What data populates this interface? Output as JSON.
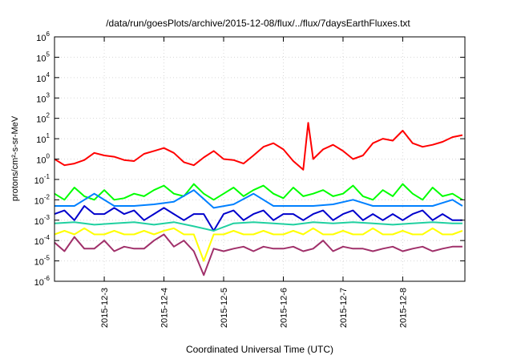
{
  "chart_data": {
    "type": "line",
    "title": "/data/run/goesPlots/archive/2015-12-08/flux/../flux/7daysEarthFluxes.txt",
    "xlabel": "Coordinated Universal Time (UTC)",
    "ylabel": "protons/cm²-s-sr-MeV",
    "yscale": "log",
    "ylim": [
      1e-06,
      1000000.0
    ],
    "xlim": [
      "2015-12-02T04:00",
      "2015-12-09T01:00"
    ],
    "grid": true,
    "y_ticks": [
      {
        "base": "10",
        "exp": "-6"
      },
      {
        "base": "10",
        "exp": "-5"
      },
      {
        "base": "10",
        "exp": "-4"
      },
      {
        "base": "10",
        "exp": "-3"
      },
      {
        "base": "10",
        "exp": "-2"
      },
      {
        "base": "10",
        "exp": "-1"
      },
      {
        "base": "10",
        "exp": "0"
      },
      {
        "base": "10",
        "exp": "1"
      },
      {
        "base": "10",
        "exp": "2"
      },
      {
        "base": "10",
        "exp": "3"
      },
      {
        "base": "10",
        "exp": "4"
      },
      {
        "base": "10",
        "exp": "5"
      },
      {
        "base": "10",
        "exp": "6"
      }
    ],
    "x_ticks": [
      "2015-12-3",
      "2015-12-4",
      "2015-12-5",
      "2015-12-6",
      "2015-12-7",
      "2015-12-8"
    ],
    "x_tick_dates": [
      "2015-12-03T00:00",
      "2015-12-04T00:00",
      "2015-12-05T00:00",
      "2015-12-06T00:00",
      "2015-12-07T00:00",
      "2015-12-08T00:00"
    ],
    "series": [
      {
        "color": "#ff0000",
        "x": [
          "2015-12-02T04:00",
          "2015-12-02T08:00",
          "2015-12-02T12:00",
          "2015-12-02T16:00",
          "2015-12-02T20:00",
          "2015-12-03T00:00",
          "2015-12-03T04:00",
          "2015-12-03T08:00",
          "2015-12-03T12:00",
          "2015-12-03T16:00",
          "2015-12-03T20:00",
          "2015-12-04T00:00",
          "2015-12-04T04:00",
          "2015-12-04T08:00",
          "2015-12-04T12:00",
          "2015-12-04T16:00",
          "2015-12-04T20:00",
          "2015-12-05T00:00",
          "2015-12-05T04:00",
          "2015-12-05T08:00",
          "2015-12-05T12:00",
          "2015-12-05T16:00",
          "2015-12-05T20:00",
          "2015-12-06T00:00",
          "2015-12-06T04:00",
          "2015-12-06T08:00",
          "2015-12-06T10:00",
          "2015-12-06T12:00",
          "2015-12-06T16:00",
          "2015-12-06T20:00",
          "2015-12-07T00:00",
          "2015-12-07T04:00",
          "2015-12-07T08:00",
          "2015-12-07T12:00",
          "2015-12-07T16:00",
          "2015-12-07T20:00",
          "2015-12-08T00:00",
          "2015-12-08T04:00",
          "2015-12-08T08:00",
          "2015-12-08T12:00",
          "2015-12-08T16:00",
          "2015-12-08T20:00",
          "2015-12-09T00:00"
        ],
        "y": [
          1.0,
          0.5,
          0.6,
          0.9,
          2.0,
          1.5,
          1.3,
          0.9,
          0.8,
          1.8,
          2.5,
          3.5,
          2.0,
          0.7,
          0.5,
          1.2,
          2.5,
          1.0,
          0.9,
          0.6,
          1.5,
          4.0,
          6.0,
          3.0,
          0.8,
          0.3,
          60,
          1.0,
          3.0,
          5.0,
          2.5,
          1.0,
          1.5,
          6.0,
          10,
          8.0,
          25,
          6.0,
          4.0,
          5.0,
          7.0,
          12,
          15
        ]
      },
      {
        "color": "#00ff00",
        "x": [
          "2015-12-02T04:00",
          "2015-12-02T08:00",
          "2015-12-02T12:00",
          "2015-12-02T16:00",
          "2015-12-02T20:00",
          "2015-12-03T00:00",
          "2015-12-03T04:00",
          "2015-12-03T08:00",
          "2015-12-03T12:00",
          "2015-12-03T16:00",
          "2015-12-03T20:00",
          "2015-12-04T00:00",
          "2015-12-04T04:00",
          "2015-12-04T08:00",
          "2015-12-04T12:00",
          "2015-12-04T16:00",
          "2015-12-04T20:00",
          "2015-12-05T00:00",
          "2015-12-05T04:00",
          "2015-12-05T08:00",
          "2015-12-05T12:00",
          "2015-12-05T16:00",
          "2015-12-05T20:00",
          "2015-12-06T00:00",
          "2015-12-06T04:00",
          "2015-12-06T08:00",
          "2015-12-06T12:00",
          "2015-12-06T16:00",
          "2015-12-06T20:00",
          "2015-12-07T00:00",
          "2015-12-07T04:00",
          "2015-12-07T08:00",
          "2015-12-07T12:00",
          "2015-12-07T16:00",
          "2015-12-07T20:00",
          "2015-12-08T00:00",
          "2015-12-08T04:00",
          "2015-12-08T08:00",
          "2015-12-08T12:00",
          "2015-12-08T16:00",
          "2015-12-08T20:00",
          "2015-12-09T00:00"
        ],
        "y": [
          0.02,
          0.01,
          0.04,
          0.015,
          0.01,
          0.03,
          0.01,
          0.012,
          0.02,
          0.015,
          0.03,
          0.05,
          0.02,
          0.015,
          0.06,
          0.02,
          0.01,
          0.02,
          0.04,
          0.015,
          0.03,
          0.05,
          0.02,
          0.012,
          0.04,
          0.015,
          0.02,
          0.03,
          0.015,
          0.02,
          0.05,
          0.015,
          0.01,
          0.03,
          0.015,
          0.06,
          0.02,
          0.01,
          0.04,
          0.015,
          0.02,
          0.01
        ]
      },
      {
        "color": "#0080ff",
        "x": [
          "2015-12-02T04:00",
          "2015-12-02T12:00",
          "2015-12-02T20:00",
          "2015-12-03T04:00",
          "2015-12-03T12:00",
          "2015-12-03T20:00",
          "2015-12-04T04:00",
          "2015-12-04T12:00",
          "2015-12-04T20:00",
          "2015-12-05T04:00",
          "2015-12-05T12:00",
          "2015-12-05T20:00",
          "2015-12-06T04:00",
          "2015-12-06T12:00",
          "2015-12-06T20:00",
          "2015-12-07T04:00",
          "2015-12-07T12:00",
          "2015-12-07T20:00",
          "2015-12-08T04:00",
          "2015-12-08T12:00",
          "2015-12-08T20:00",
          "2015-12-09T00:00"
        ],
        "y": [
          0.005,
          0.005,
          0.02,
          0.005,
          0.005,
          0.006,
          0.008,
          0.03,
          0.004,
          0.006,
          0.02,
          0.005,
          0.005,
          0.005,
          0.006,
          0.01,
          0.005,
          0.005,
          0.005,
          0.005,
          0.01,
          0.005
        ]
      },
      {
        "color": "#0000cc",
        "x": [
          "2015-12-02T04:00",
          "2015-12-02T08:00",
          "2015-12-02T12:00",
          "2015-12-02T16:00",
          "2015-12-02T20:00",
          "2015-12-03T00:00",
          "2015-12-03T04:00",
          "2015-12-03T08:00",
          "2015-12-03T12:00",
          "2015-12-03T16:00",
          "2015-12-03T20:00",
          "2015-12-04T00:00",
          "2015-12-04T04:00",
          "2015-12-04T08:00",
          "2015-12-04T12:00",
          "2015-12-04T16:00",
          "2015-12-04T20:00",
          "2015-12-05T00:00",
          "2015-12-05T04:00",
          "2015-12-05T08:00",
          "2015-12-05T12:00",
          "2015-12-05T16:00",
          "2015-12-05T20:00",
          "2015-12-06T00:00",
          "2015-12-06T04:00",
          "2015-12-06T08:00",
          "2015-12-06T12:00",
          "2015-12-06T16:00",
          "2015-12-06T20:00",
          "2015-12-07T00:00",
          "2015-12-07T04:00",
          "2015-12-07T08:00",
          "2015-12-07T12:00",
          "2015-12-07T16:00",
          "2015-12-07T20:00",
          "2015-12-08T00:00",
          "2015-12-08T04:00",
          "2015-12-08T08:00",
          "2015-12-08T12:00",
          "2015-12-08T16:00",
          "2015-12-08T20:00",
          "2015-12-09T00:00"
        ],
        "y": [
          0.002,
          0.003,
          0.001,
          0.005,
          0.002,
          0.002,
          0.004,
          0.002,
          0.003,
          0.001,
          0.002,
          0.004,
          0.002,
          0.001,
          0.002,
          0.002,
          0.0003,
          0.002,
          0.003,
          0.001,
          0.002,
          0.003,
          0.001,
          0.002,
          0.002,
          0.001,
          0.002,
          0.003,
          0.001,
          0.002,
          0.003,
          0.001,
          0.002,
          0.001,
          0.002,
          0.001,
          0.002,
          0.003,
          0.001,
          0.002,
          0.001,
          0.001
        ]
      },
      {
        "color": "#20d0a0",
        "x": [
          "2015-12-02T04:00",
          "2015-12-02T12:00",
          "2015-12-02T20:00",
          "2015-12-03T04:00",
          "2015-12-03T12:00",
          "2015-12-03T20:00",
          "2015-12-04T04:00",
          "2015-12-04T12:00",
          "2015-12-04T20:00",
          "2015-12-05T04:00",
          "2015-12-05T12:00",
          "2015-12-05T20:00",
          "2015-12-06T04:00",
          "2015-12-06T12:00",
          "2015-12-06T20:00",
          "2015-12-07T04:00",
          "2015-12-07T12:00",
          "2015-12-07T20:00",
          "2015-12-08T04:00",
          "2015-12-08T12:00",
          "2015-12-08T20:00",
          "2015-12-09T00:00"
        ],
        "y": [
          0.0007,
          0.0008,
          0.0006,
          0.0007,
          0.0008,
          0.0006,
          0.0008,
          0.0005,
          0.0003,
          0.0007,
          0.0008,
          0.0007,
          0.0006,
          0.0008,
          0.0007,
          0.0008,
          0.0007,
          0.0006,
          0.0007,
          0.0008,
          0.0007,
          0.0007
        ]
      },
      {
        "color": "#ffff00",
        "x": [
          "2015-12-02T04:00",
          "2015-12-02T08:00",
          "2015-12-02T12:00",
          "2015-12-02T16:00",
          "2015-12-02T20:00",
          "2015-12-03T00:00",
          "2015-12-03T04:00",
          "2015-12-03T08:00",
          "2015-12-03T12:00",
          "2015-12-03T16:00",
          "2015-12-03T20:00",
          "2015-12-04T00:00",
          "2015-12-04T04:00",
          "2015-12-04T08:00",
          "2015-12-04T12:00",
          "2015-12-04T16:00",
          "2015-12-04T20:00",
          "2015-12-05T00:00",
          "2015-12-05T04:00",
          "2015-12-05T08:00",
          "2015-12-05T12:00",
          "2015-12-05T16:00",
          "2015-12-05T20:00",
          "2015-12-06T00:00",
          "2015-12-06T04:00",
          "2015-12-06T08:00",
          "2015-12-06T12:00",
          "2015-12-06T16:00",
          "2015-12-06T20:00",
          "2015-12-07T00:00",
          "2015-12-07T04:00",
          "2015-12-07T08:00",
          "2015-12-07T12:00",
          "2015-12-07T16:00",
          "2015-12-07T20:00",
          "2015-12-08T00:00",
          "2015-12-08T04:00",
          "2015-12-08T08:00",
          "2015-12-08T12:00",
          "2015-12-08T16:00",
          "2015-12-08T20:00",
          "2015-12-09T00:00"
        ],
        "y": [
          0.0002,
          0.0003,
          0.0002,
          0.0004,
          0.0002,
          0.0002,
          0.0003,
          0.0002,
          0.0002,
          0.0003,
          0.0002,
          0.0003,
          0.0004,
          0.0002,
          0.0002,
          1e-05,
          0.0002,
          0.0002,
          0.0003,
          0.0002,
          0.0002,
          0.0003,
          0.0002,
          0.0002,
          0.0003,
          0.0002,
          0.0004,
          0.0002,
          0.0002,
          0.0003,
          0.0002,
          0.0002,
          0.0004,
          0.0002,
          0.0002,
          0.0003,
          0.0002,
          0.0002,
          0.0004,
          0.0002,
          0.0002,
          0.0003
        ]
      },
      {
        "color": "#a0306a",
        "x": [
          "2015-12-02T04:00",
          "2015-12-02T08:00",
          "2015-12-02T12:00",
          "2015-12-02T16:00",
          "2015-12-02T20:00",
          "2015-12-03T00:00",
          "2015-12-03T04:00",
          "2015-12-03T08:00",
          "2015-12-03T12:00",
          "2015-12-03T16:00",
          "2015-12-03T20:00",
          "2015-12-04T00:00",
          "2015-12-04T04:00",
          "2015-12-04T08:00",
          "2015-12-04T12:00",
          "2015-12-04T16:00",
          "2015-12-04T20:00",
          "2015-12-05T00:00",
          "2015-12-05T04:00",
          "2015-12-05T08:00",
          "2015-12-05T12:00",
          "2015-12-05T16:00",
          "2015-12-05T20:00",
          "2015-12-06T00:00",
          "2015-12-06T04:00",
          "2015-12-06T08:00",
          "2015-12-06T12:00",
          "2015-12-06T16:00",
          "2015-12-06T20:00",
          "2015-12-07T00:00",
          "2015-12-07T04:00",
          "2015-12-07T08:00",
          "2015-12-07T12:00",
          "2015-12-07T16:00",
          "2015-12-07T20:00",
          "2015-12-08T00:00",
          "2015-12-08T04:00",
          "2015-12-08T08:00",
          "2015-12-08T12:00",
          "2015-12-08T16:00",
          "2015-12-08T20:00",
          "2015-12-09T00:00"
        ],
        "y": [
          8e-05,
          3e-05,
          0.00015,
          4e-05,
          4e-05,
          0.0001,
          3e-05,
          5e-05,
          4e-05,
          4e-05,
          0.0001,
          0.0002,
          5e-05,
          0.0001,
          3e-05,
          2e-06,
          4e-05,
          3e-05,
          4e-05,
          5e-05,
          3e-05,
          5e-05,
          4e-05,
          4e-05,
          5e-05,
          3e-05,
          4e-05,
          0.0001,
          3e-05,
          5e-05,
          4e-05,
          4e-05,
          3e-05,
          4e-05,
          5e-05,
          3e-05,
          4e-05,
          5e-05,
          3e-05,
          4e-05,
          5e-05,
          5e-05
        ]
      }
    ]
  }
}
